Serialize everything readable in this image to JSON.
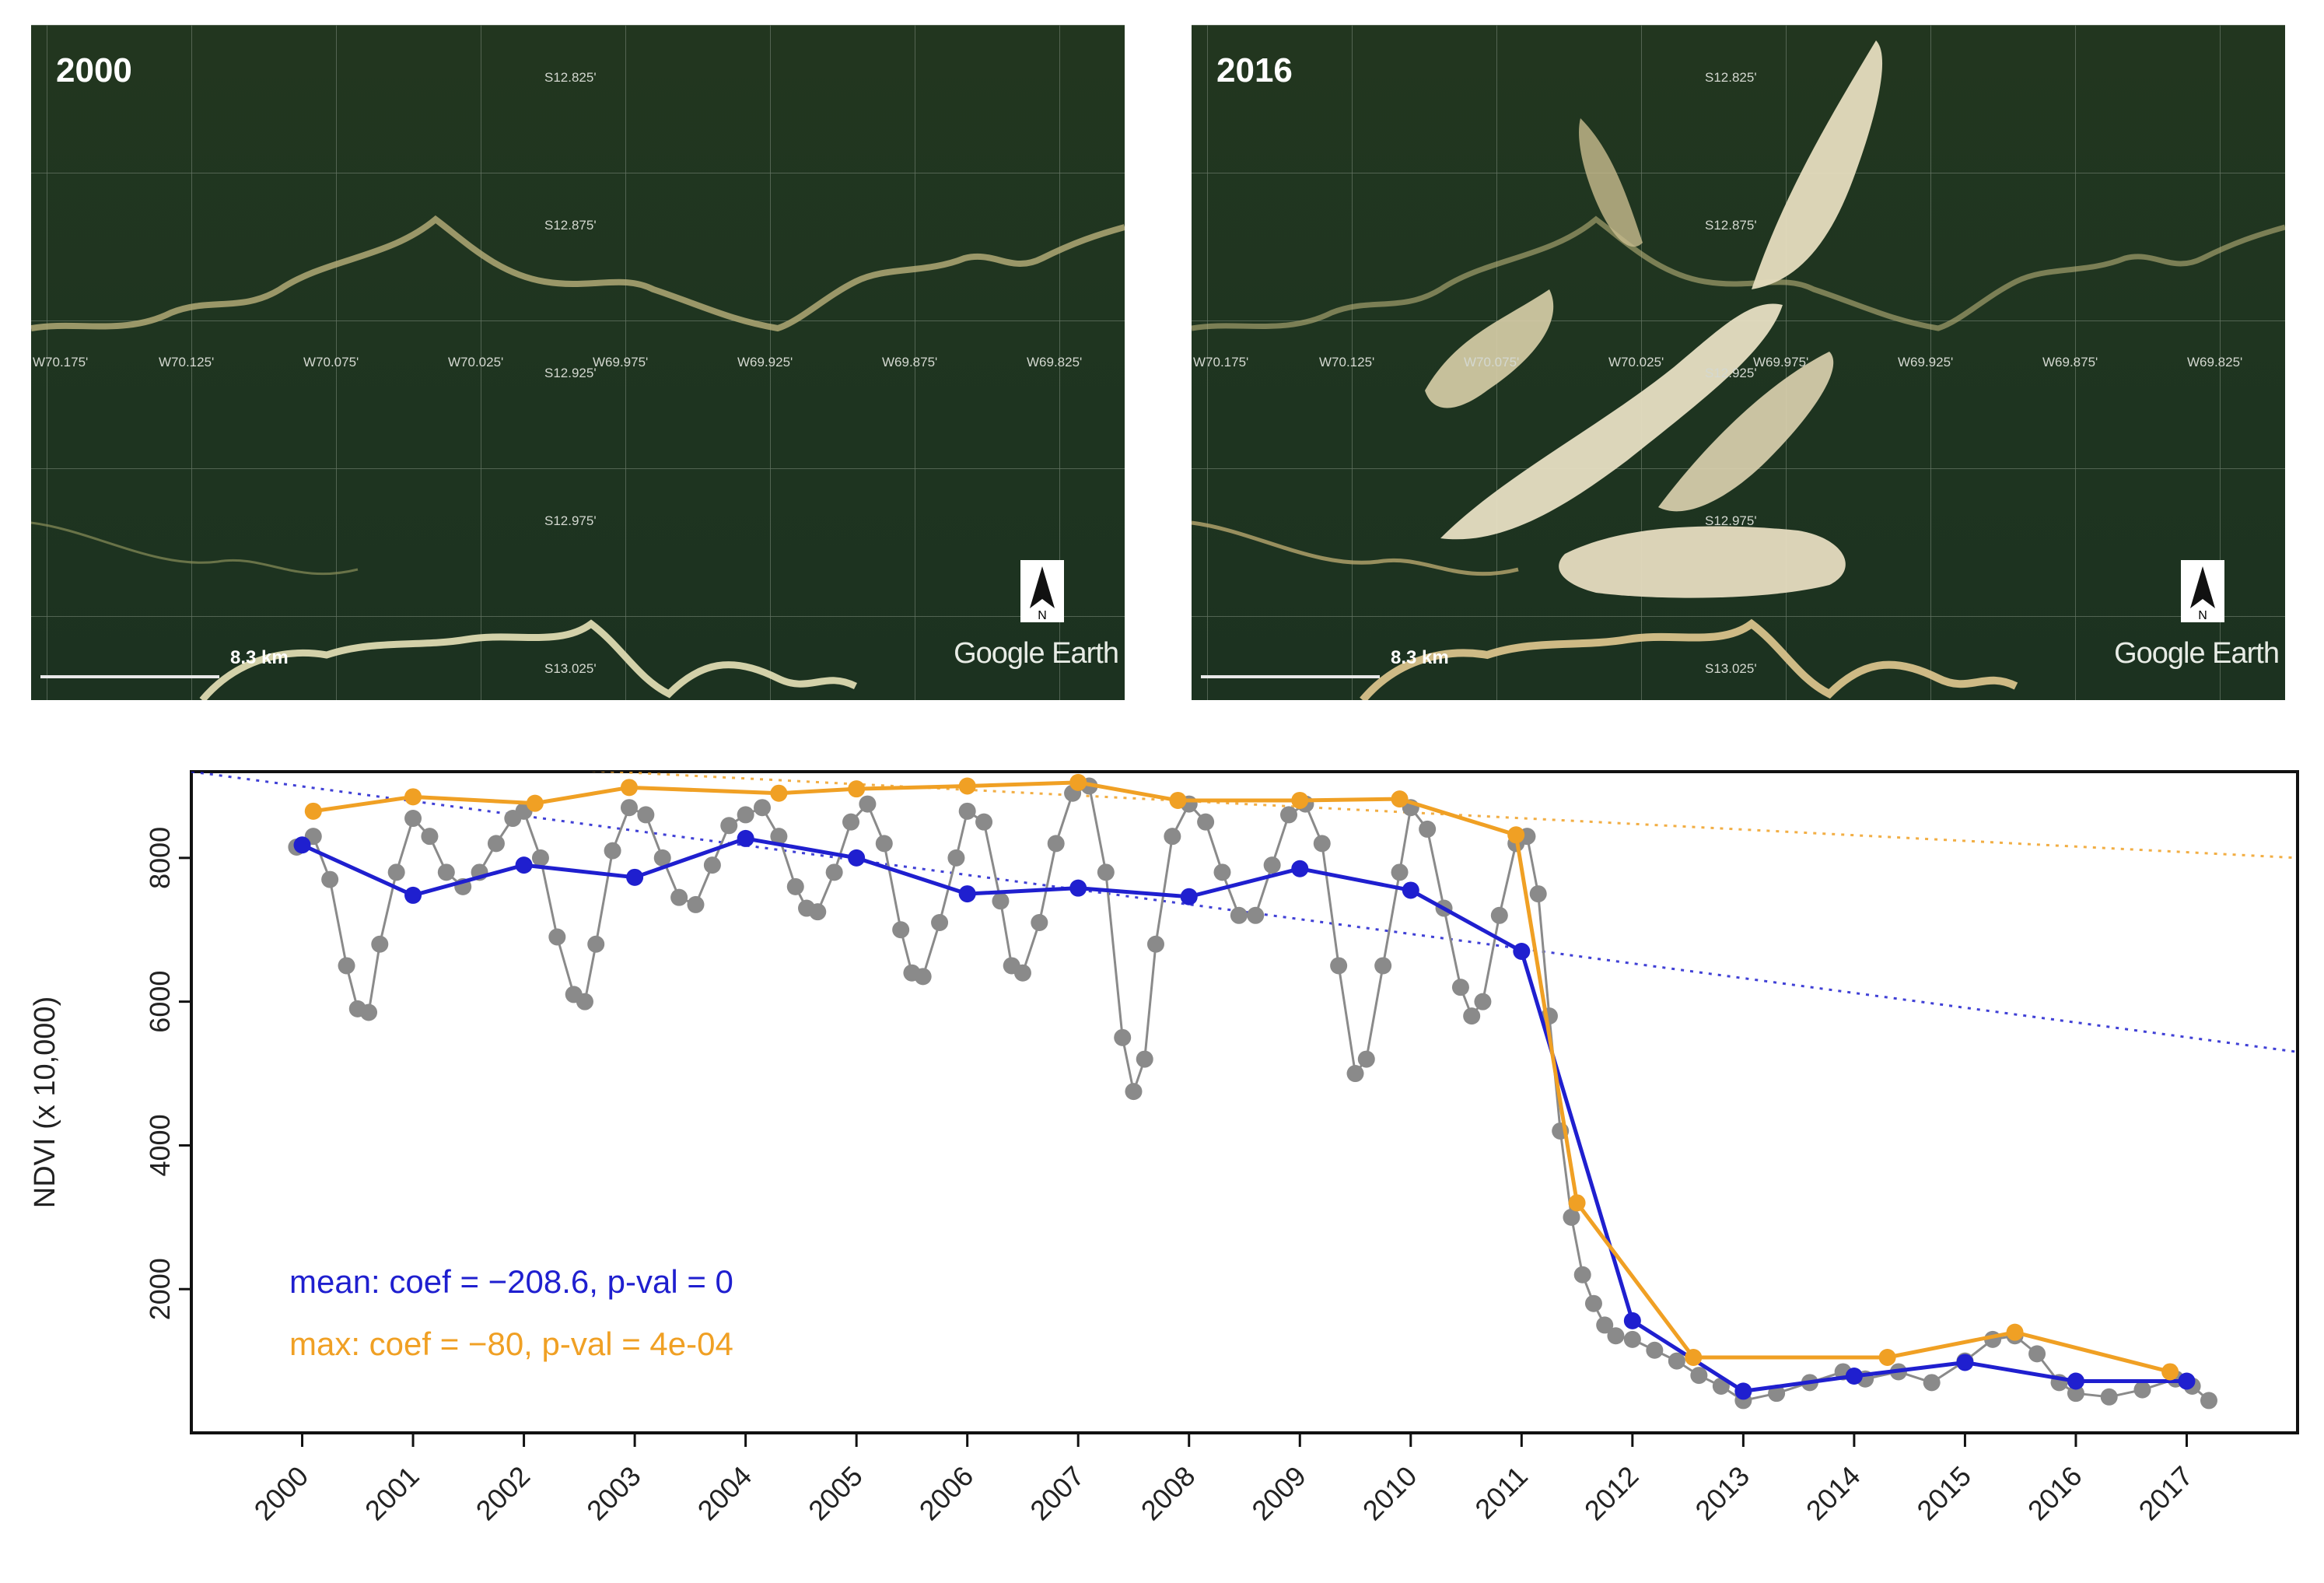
{
  "panels": [
    {
      "year": "2000",
      "scale_label": "8.3 km",
      "watermark": "Google Earth",
      "compass_letter": "N",
      "lat_labels": [
        "S12.825'",
        "S12.875'",
        "S12.925'",
        "S12.975'",
        "S13.025'"
      ],
      "lon_labels": [
        "W70.175'",
        "W70.125'",
        "W70.075'",
        "W70.025'",
        "W69.975'",
        "W69.925'",
        "W69.875'",
        "W69.825'"
      ]
    },
    {
      "year": "2016",
      "scale_label": "8.3 km",
      "watermark": "Google Earth",
      "compass_letter": "N",
      "lat_labels": [
        "S12.825'",
        "S12.875'",
        "S12.925'",
        "S12.975'",
        "S13.025'"
      ],
      "lon_labels": [
        "W70.175'",
        "W70.125'",
        "W70.075'",
        "W70.025'",
        "W69.975'",
        "W69.925'",
        "W69.875'",
        "W69.825'"
      ]
    }
  ],
  "chart_data": {
    "type": "line",
    "ylabel": "NDVI (x 10,000)",
    "xlim": [
      1999.0,
      2018.0
    ],
    "ylim": [
      0,
      9200
    ],
    "yticks": [
      2000,
      4000,
      6000,
      8000
    ],
    "xticks": [
      2000,
      2001,
      2002,
      2003,
      2004,
      2005,
      2006,
      2007,
      2008,
      2009,
      2010,
      2011,
      2012,
      2013,
      2014,
      2015,
      2016,
      2017
    ],
    "annotations": [
      {
        "text": "mean: coef = −208.6, p-val = 0",
        "color": "#1f1fcf"
      },
      {
        "text": "max: coef = −80, p-val = 4e-04",
        "color": "#f0a024"
      }
    ],
    "colors": {
      "raw": "#8a8a8a",
      "mean": "#1f1fcf",
      "max": "#f0a024",
      "grid": "#ffffff"
    },
    "series": [
      {
        "key": "raw",
        "x": [
          1999.95,
          2000.1,
          2000.25,
          2000.4,
          2000.5,
          2000.6,
          2000.7,
          2000.85,
          2001.0,
          2001.15,
          2001.3,
          2001.45,
          2001.6,
          2001.75,
          2001.9,
          2002.0,
          2002.15,
          2002.3,
          2002.45,
          2002.55,
          2002.65,
          2002.8,
          2002.95,
          2003.1,
          2003.25,
          2003.4,
          2003.55,
          2003.7,
          2003.85,
          2004.0,
          2004.15,
          2004.3,
          2004.45,
          2004.55,
          2004.65,
          2004.8,
          2004.95,
          2005.1,
          2005.25,
          2005.4,
          2005.5,
          2005.6,
          2005.75,
          2005.9,
          2006.0,
          2006.15,
          2006.3,
          2006.4,
          2006.5,
          2006.65,
          2006.8,
          2006.95,
          2007.1,
          2007.25,
          2007.4,
          2007.5,
          2007.6,
          2007.7,
          2007.85,
          2008.0,
          2008.15,
          2008.3,
          2008.45,
          2008.6,
          2008.75,
          2008.9,
          2009.05,
          2009.2,
          2009.35,
          2009.5,
          2009.6,
          2009.75,
          2009.9,
          2010.0,
          2010.15,
          2010.3,
          2010.45,
          2010.55,
          2010.65,
          2010.8,
          2010.95,
          2011.05,
          2011.15,
          2011.25,
          2011.35,
          2011.45,
          2011.55,
          2011.65,
          2011.75,
          2011.85,
          2012.0,
          2012.2,
          2012.4,
          2012.6,
          2012.8,
          2013.0,
          2013.3,
          2013.6,
          2013.9,
          2014.1,
          2014.4,
          2014.7,
          2015.0,
          2015.25,
          2015.45,
          2015.65,
          2015.85,
          2016.0,
          2016.3,
          2016.6,
          2016.9,
          2017.05,
          2017.2
        ],
        "y": [
          8150,
          8300,
          7700,
          6500,
          5900,
          5850,
          6800,
          7800,
          8550,
          8300,
          7800,
          7600,
          7800,
          8200,
          8550,
          8650,
          8000,
          6900,
          6100,
          6000,
          6800,
          8100,
          8700,
          8600,
          8000,
          7450,
          7350,
          7900,
          8450,
          8600,
          8700,
          8300,
          7600,
          7300,
          7250,
          7800,
          8500,
          8750,
          8200,
          7000,
          6400,
          6350,
          7100,
          8000,
          8650,
          8500,
          7400,
          6500,
          6400,
          7100,
          8200,
          8900,
          9000,
          7800,
          5500,
          4750,
          5200,
          6800,
          8300,
          8750,
          8500,
          7800,
          7200,
          7200,
          7900,
          8600,
          8750,
          8200,
          6500,
          5000,
          5200,
          6500,
          7800,
          8700,
          8400,
          7300,
          6200,
          5800,
          6000,
          7200,
          8200,
          8300,
          7500,
          5800,
          4200,
          3000,
          2200,
          1800,
          1500,
          1350,
          1300,
          1150,
          1000,
          800,
          650,
          450,
          550,
          700,
          850,
          750,
          850,
          700,
          1000,
          1300,
          1350,
          1100,
          700,
          550,
          500,
          600,
          750,
          650,
          450
        ]
      },
      {
        "key": "mean",
        "x": [
          2000,
          2001,
          2002,
          2003,
          2004,
          2005,
          2006,
          2007,
          2008,
          2009,
          2010,
          2011,
          2012,
          2013,
          2014,
          2015,
          2016,
          2017
        ],
        "y": [
          8180,
          7480,
          7900,
          7730,
          8270,
          8000,
          7500,
          7580,
          7460,
          7850,
          7550,
          6700,
          1560,
          580,
          790,
          980,
          720,
          720
        ]
      },
      {
        "key": "max",
        "x": [
          2000.1,
          2001.0,
          2002.1,
          2002.95,
          2004.3,
          2005.0,
          2006.0,
          2007.0,
          2007.9,
          2009.0,
          2009.9,
          2010.95,
          2011.5,
          2012.55,
          2014.3,
          2015.45,
          2016.85
        ],
        "y": [
          8650,
          8850,
          8760,
          8980,
          8900,
          8960,
          9000,
          9050,
          8800,
          8800,
          8820,
          8320,
          3200,
          1050,
          1050,
          1400,
          850
        ]
      }
    ],
    "trend_lines": [
      {
        "key": "mean",
        "x": [
          1999.0,
          2018.0
        ],
        "y": [
          9200,
          5300
        ]
      },
      {
        "key": "max",
        "x": [
          1999.0,
          2018.0
        ],
        "y": [
          9500,
          8000
        ]
      }
    ]
  }
}
